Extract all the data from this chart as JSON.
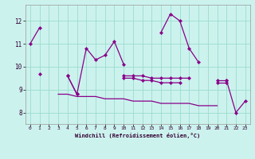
{
  "xlabel": "Windchill (Refroidissement éolien,°C)",
  "background_color": "#ccf2ee",
  "line_color": "#880088",
  "grid_color": "#99ddcc",
  "xlim": [
    -0.5,
    23.5
  ],
  "ylim": [
    7.5,
    12.7
  ],
  "yticks": [
    8,
    9,
    10,
    11,
    12
  ],
  "xticks": [
    0,
    1,
    2,
    3,
    4,
    5,
    6,
    7,
    8,
    9,
    10,
    11,
    12,
    13,
    14,
    15,
    16,
    17,
    18,
    19,
    20,
    21,
    22,
    23
  ],
  "series1_y": [
    11.0,
    11.7,
    null,
    null,
    9.6,
    8.8,
    10.8,
    10.3,
    10.5,
    11.1,
    10.1,
    null,
    null,
    null,
    11.5,
    12.3,
    12.0,
    10.8,
    10.2,
    null,
    null,
    9.4,
    8.0,
    8.5
  ],
  "series2_y": [
    null,
    null,
    null,
    null,
    null,
    null,
    null,
    null,
    null,
    null,
    9.6,
    9.6,
    9.6,
    9.5,
    9.5,
    9.5,
    9.5,
    9.5,
    null,
    null,
    9.4,
    9.4,
    null,
    null
  ],
  "series3_y": [
    null,
    9.7,
    null,
    null,
    9.6,
    8.8,
    null,
    null,
    null,
    null,
    9.5,
    9.5,
    9.4,
    9.4,
    9.3,
    9.3,
    9.3,
    null,
    null,
    null,
    9.3,
    9.3,
    null,
    null
  ],
  "series4_y": [
    null,
    null,
    null,
    8.8,
    8.8,
    8.7,
    8.7,
    8.7,
    8.6,
    8.6,
    8.6,
    8.5,
    8.5,
    8.5,
    8.4,
    8.4,
    8.4,
    8.4,
    8.3,
    8.3,
    8.3,
    null,
    null,
    null
  ]
}
